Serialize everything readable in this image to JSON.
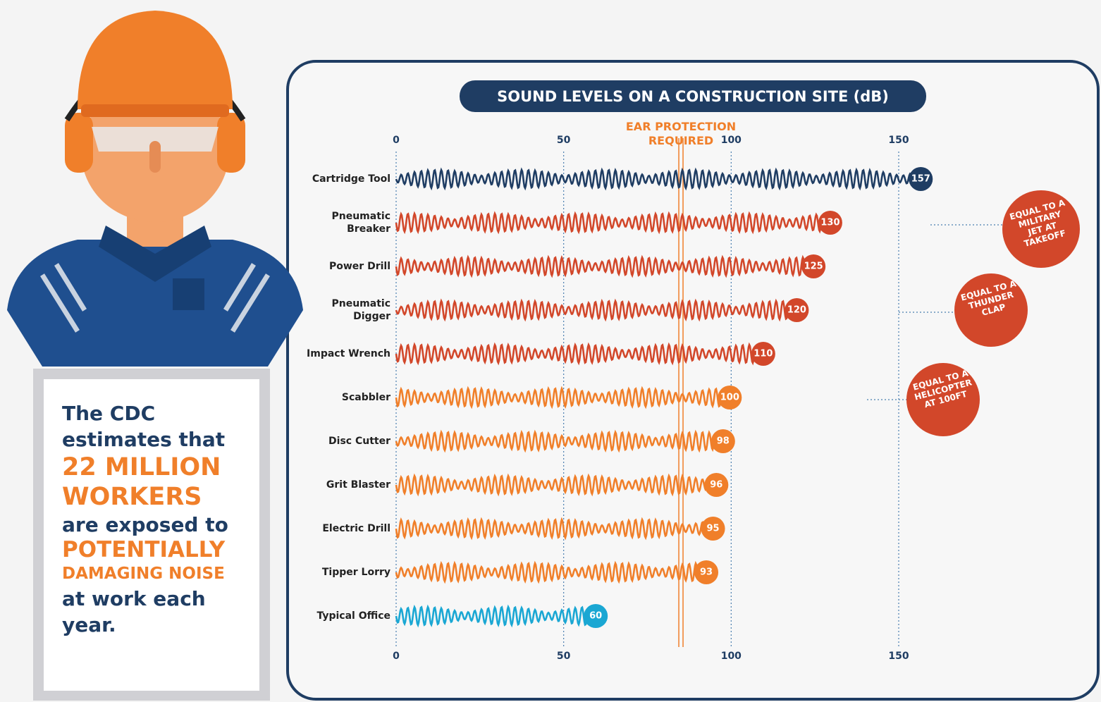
{
  "chart_data": {
    "type": "wave-bar",
    "title": "SOUND LEVELS ON A CONSTRUCTION SITE (dB)",
    "categories": [
      "Cartridge Tool",
      "Pneumatic Breaker",
      "Power Drill",
      "Pneumatic Digger",
      "Impact Wrench",
      "Scabbler",
      "Disc Cutter",
      "Grit Blaster",
      "Electric Drill",
      "Tipper Lorry",
      "Typical Office"
    ],
    "values": [
      157,
      130,
      125,
      120,
      110,
      100,
      98,
      96,
      95,
      93,
      60
    ],
    "colors": [
      "#1f3d63",
      "#d2472a",
      "#d2472a",
      "#d2472a",
      "#d2472a",
      "#f07f2a",
      "#f07f2a",
      "#f07f2a",
      "#f07f2a",
      "#f07f2a",
      "#1aa7d3"
    ],
    "xlim": [
      0,
      150
    ],
    "xticks": [
      0,
      50,
      100,
      150
    ],
    "grid": true,
    "threshold": {
      "value": 85,
      "label": "EAR PROTECTION REQUIRED",
      "color": "#f07f2a"
    },
    "annotations": [
      "EQUAL TO A MILITARY JET AT TAKEOFF",
      "EQUAL TO A THUNDER CLAP",
      "EQUAL TO A HELICOPTER AT 100FT"
    ]
  },
  "sidebar": {
    "line1": "The CDC estimates that",
    "highlight1": "22 MILLION WORKERS",
    "line2": "are exposed to",
    "highlight2": "POTENTIALLY",
    "highlight3": "DAMAGING NOISE",
    "line3": "at work each year."
  }
}
